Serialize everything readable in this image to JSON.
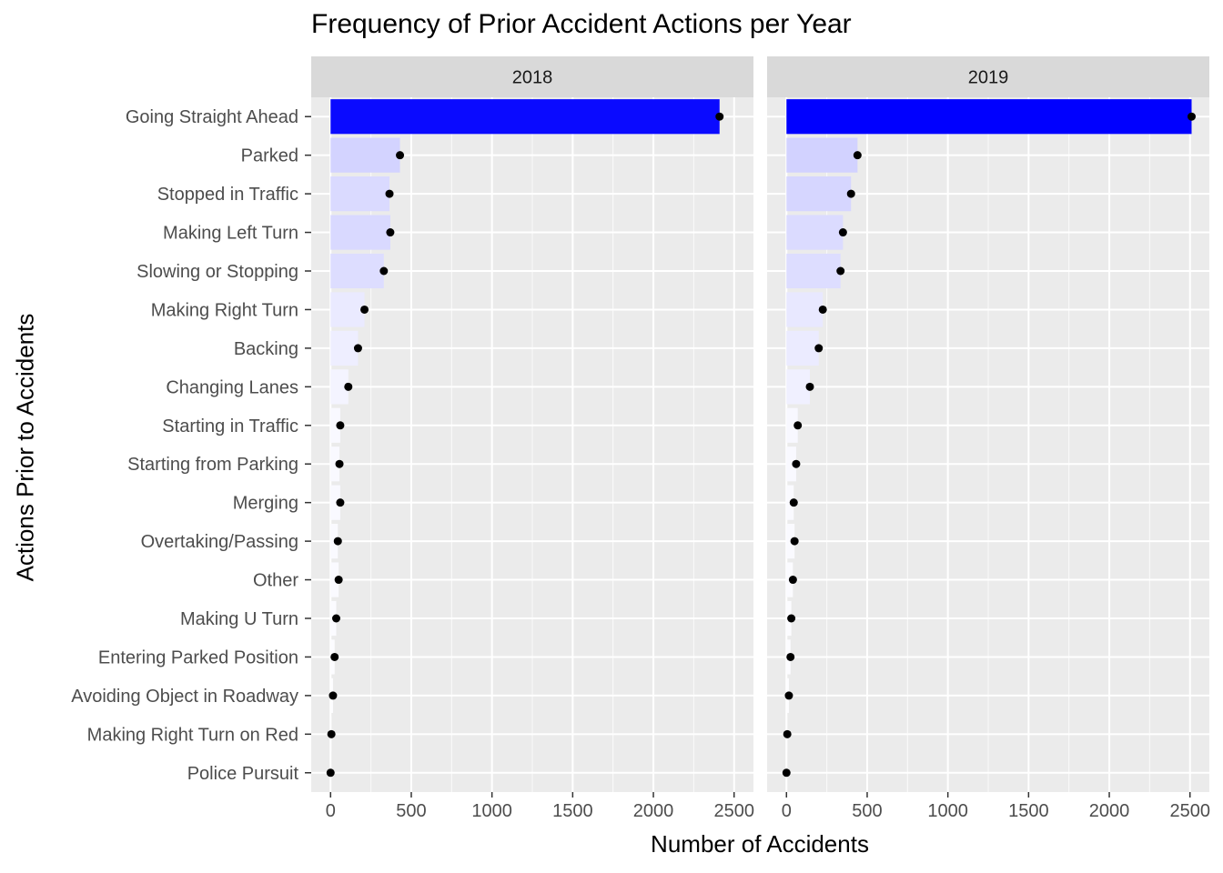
{
  "chart_data": {
    "type": "bar",
    "title": "Frequency of Prior Accident Actions per Year",
    "xlabel": "Number of Accidents",
    "ylabel": "Actions Prior to Accidents",
    "xlim": [
      -120,
      2620
    ],
    "xticks": [
      0,
      500,
      1000,
      1500,
      2000,
      2500
    ],
    "grid": true,
    "legend": "none",
    "fill_low": "#ffffff",
    "fill_high": "#0000ff",
    "marker_color": "#000000",
    "panel_bg": "#ebebeb",
    "strip_bg": "#d9d9d9",
    "categories": [
      "Going Straight Ahead",
      "Parked",
      "Stopped in Traffic",
      "Making Left Turn",
      "Slowing or Stopping",
      "Making Right Turn",
      "Backing",
      "Changing Lanes",
      "Starting in Traffic",
      "Starting from Parking",
      "Merging",
      "Overtaking/Passing",
      "Other",
      "Making U Turn",
      "Entering Parked Position",
      "Avoiding Object in Roadway",
      "Making Right Turn on Red",
      "Police Pursuit"
    ],
    "panels": [
      {
        "name": "2018",
        "values": [
          2410,
          430,
          365,
          370,
          330,
          210,
          170,
          110,
          60,
          55,
          60,
          45,
          50,
          35,
          25,
          15,
          5,
          0
        ]
      },
      {
        "name": "2019",
        "values": [
          2510,
          440,
          400,
          350,
          335,
          225,
          200,
          145,
          70,
          60,
          45,
          50,
          40,
          30,
          25,
          15,
          5,
          0
        ]
      }
    ]
  }
}
